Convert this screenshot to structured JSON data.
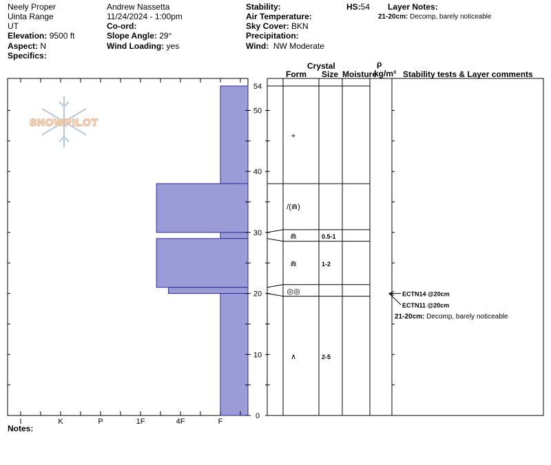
{
  "header": {
    "observer": "Neely Proper",
    "range": "Uinta Range",
    "state": "UT",
    "elevation_label": "Elevation:",
    "elevation_value": "9500 ft",
    "aspect_label": "Aspect:",
    "aspect_value": "N",
    "specifics_label": "Specifics:",
    "author": "Andrew Nassetta",
    "datetime": "11/24/2024 - 1:00pm",
    "coord_label": "Co-ord:",
    "slope_label": "Slope Angle:",
    "slope_value": "29°",
    "wind_loading_label": "Wind Loading:",
    "wind_loading_value": "yes",
    "stability_label": "Stability:",
    "air_temp_label": "Air Temperature:",
    "sky_cover_label": "Sky Cover:",
    "sky_cover_value": "BKN",
    "precip_label": "Precipitation:",
    "wind_label": "Wind:",
    "wind_value": "NW Moderate",
    "hs_label": "HS:",
    "hs_value": "54",
    "layer_notes_label": "Layer Notes:",
    "layer_note_depth": "21-20cm:",
    "layer_note_text": "Decomp, barely noticeable"
  },
  "table_headers": {
    "crystal": "Crystal",
    "form": "Form",
    "size": "Size",
    "moisture": "Moisture",
    "rho": "ρ",
    "density_unit": "kg/m³",
    "comments": "Stability tests & Layer comments"
  },
  "watermark": "SNOWPILOT",
  "notes_label": "Notes:",
  "chart_data": {
    "type": "bar",
    "orientation": "horizontal",
    "y_axis": {
      "range": [
        0,
        54
      ],
      "ticks": [
        0,
        10,
        20,
        30,
        40,
        50,
        54
      ],
      "unit": "cm"
    },
    "x_axis": {
      "categories": [
        "I",
        "K",
        "P",
        "1F",
        "4F",
        "F"
      ],
      "direction": "hardness"
    },
    "colors": {
      "fill": "#9b9bd8",
      "stroke": "#2a2a9a"
    },
    "hardness_layers": [
      {
        "top": 54,
        "bottom": 38,
        "hardness": 0
      },
      {
        "top": 38,
        "bottom": 30,
        "hardness": 1.6
      },
      {
        "top": 30,
        "bottom": 29,
        "hardness": 0
      },
      {
        "top": 29,
        "bottom": 21,
        "hardness": 1.6
      },
      {
        "top": 21,
        "bottom": 20,
        "hardness": 1.3
      },
      {
        "top": 20,
        "bottom": 0,
        "hardness": 0
      }
    ],
    "layers": [
      {
        "top": 54,
        "bottom": 38,
        "form": "+",
        "size": ""
      },
      {
        "top": 38,
        "bottom": 30,
        "form": "/(⋒)",
        "size": ""
      },
      {
        "top": 30,
        "bottom": 29,
        "form": "⋒",
        "size": "0.5-1"
      },
      {
        "top": 29,
        "bottom": 21,
        "form": "⋒",
        "size": "1-2"
      },
      {
        "top": 21,
        "bottom": 20,
        "form": "◎◎",
        "size": ""
      },
      {
        "top": 20,
        "bottom": 0,
        "form": "∧",
        "size": "2-5"
      }
    ],
    "stability_tests": [
      {
        "depth": 20,
        "text": "ECTN14 @20cm"
      },
      {
        "depth": 20,
        "text": "ECTN11 @20cm"
      }
    ],
    "layer_comment": {
      "depth": "21-20cm:",
      "text": "Decomp, barely noticeable"
    }
  }
}
